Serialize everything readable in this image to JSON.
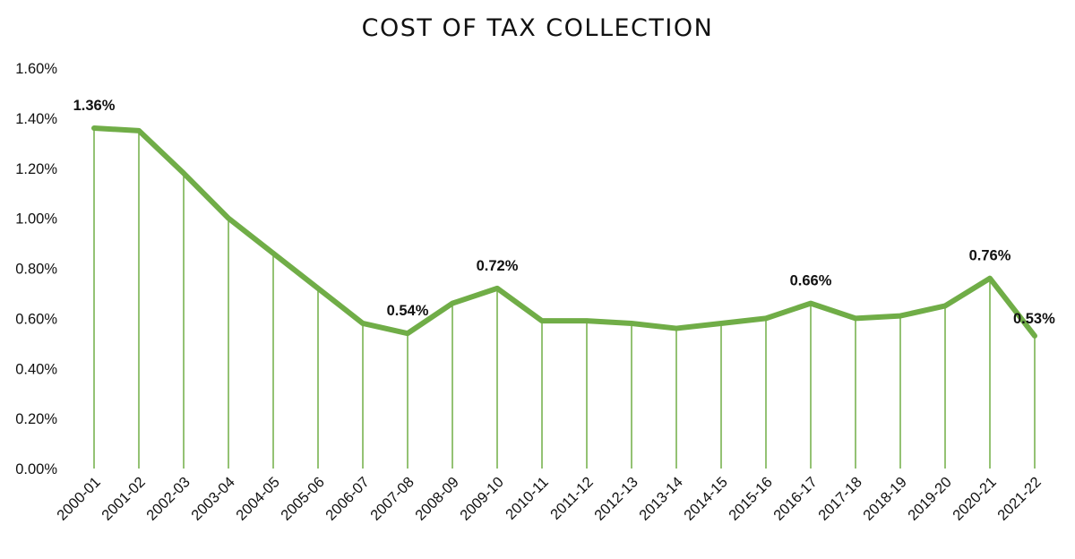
{
  "chart_data": {
    "type": "line",
    "title": "COST OF TAX COLLECTION",
    "xlabel": "",
    "ylabel": "",
    "ylim": [
      0,
      1.6
    ],
    "yticks": [
      "0.00%",
      "0.20%",
      "0.40%",
      "0.60%",
      "0.80%",
      "1.00%",
      "1.20%",
      "1.40%",
      "1.60%"
    ],
    "grid": false,
    "drop_lines": true,
    "color": "#70AD47",
    "categories": [
      "2000-01",
      "2001-02",
      "2002-03",
      "2003-04",
      "2004-05",
      "2005-06",
      "2006-07",
      "2007-08",
      "2008-09",
      "2009-10",
      "2010-11",
      "2011-12",
      "2012-13",
      "2013-14",
      "2014-15",
      "2015-16",
      "2016-17",
      "2017-18",
      "2018-19",
      "2019-20",
      "2020-21",
      "2021-22"
    ],
    "values": [
      1.36,
      1.35,
      1.18,
      1.0,
      0.86,
      0.72,
      0.58,
      0.54,
      0.66,
      0.72,
      0.59,
      0.59,
      0.58,
      0.56,
      0.58,
      0.6,
      0.66,
      0.6,
      0.61,
      0.65,
      0.76,
      0.53
    ],
    "data_labels": [
      {
        "index": 0,
        "text": "1.36%"
      },
      {
        "index": 7,
        "text": "0.54%"
      },
      {
        "index": 9,
        "text": "0.72%"
      },
      {
        "index": 16,
        "text": "0.66%"
      },
      {
        "index": 20,
        "text": "0.76%"
      },
      {
        "index": 21,
        "text": "0.53%"
      }
    ]
  }
}
